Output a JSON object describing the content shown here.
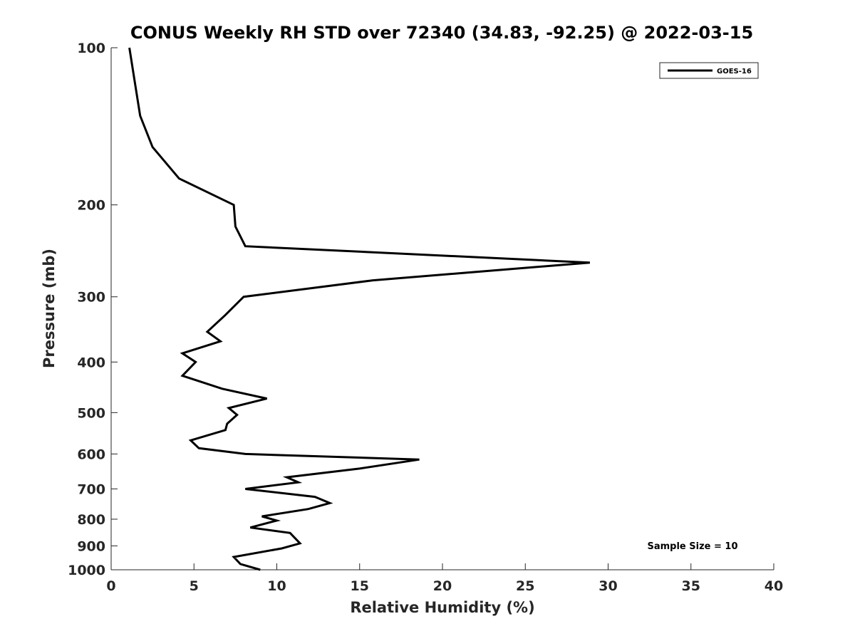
{
  "chart_data": {
    "type": "line",
    "title": "CONUS Weekly RH STD over 72340 (34.83, -92.25) @ 2022-03-15",
    "xlabel": "Relative Humidity (%)",
    "ylabel": "Pressure (mb)",
    "xlim": [
      0,
      40
    ],
    "ylim": [
      100,
      1000
    ],
    "y_scale": "log",
    "y_reversed": true,
    "grid": false,
    "legend_position": "top-right",
    "x_ticks": [
      "0",
      "5",
      "10",
      "15",
      "20",
      "25",
      "30",
      "35",
      "40"
    ],
    "y_ticks": [
      "100",
      "200",
      "300",
      "400",
      "500",
      "600",
      "700",
      "800",
      "900",
      "1000"
    ],
    "annotation": "Sample Size = 10",
    "series": [
      {
        "name": "GOES-16",
        "color": "#000000",
        "points": [
          [
            1.1,
            100
          ],
          [
            1.4,
            115
          ],
          [
            1.75,
            135
          ],
          [
            2.5,
            155
          ],
          [
            4.1,
            178
          ],
          [
            7.4,
            200
          ],
          [
            7.5,
            220
          ],
          [
            8.1,
            240
          ],
          [
            28.9,
            258
          ],
          [
            15.8,
            279
          ],
          [
            8.0,
            300
          ],
          [
            6.9,
            325
          ],
          [
            5.8,
            350
          ],
          [
            6.6,
            365
          ],
          [
            4.3,
            385
          ],
          [
            5.1,
            400
          ],
          [
            4.3,
            425
          ],
          [
            6.7,
            450
          ],
          [
            9.4,
            470
          ],
          [
            7.1,
            490
          ],
          [
            7.6,
            505
          ],
          [
            7.0,
            525
          ],
          [
            6.9,
            540
          ],
          [
            4.8,
            565
          ],
          [
            5.3,
            585
          ],
          [
            8.1,
            600
          ],
          [
            18.6,
            615
          ],
          [
            15.0,
            640
          ],
          [
            10.6,
            665
          ],
          [
            11.3,
            680
          ],
          [
            8.1,
            700
          ],
          [
            12.3,
            725
          ],
          [
            13.2,
            745
          ],
          [
            11.9,
            765
          ],
          [
            9.1,
            790
          ],
          [
            10.0,
            805
          ],
          [
            8.4,
            830
          ],
          [
            10.8,
            850
          ],
          [
            11.4,
            890
          ],
          [
            10.3,
            910
          ],
          [
            7.4,
            945
          ],
          [
            7.8,
            975
          ],
          [
            9.0,
            1000
          ]
        ]
      }
    ]
  }
}
